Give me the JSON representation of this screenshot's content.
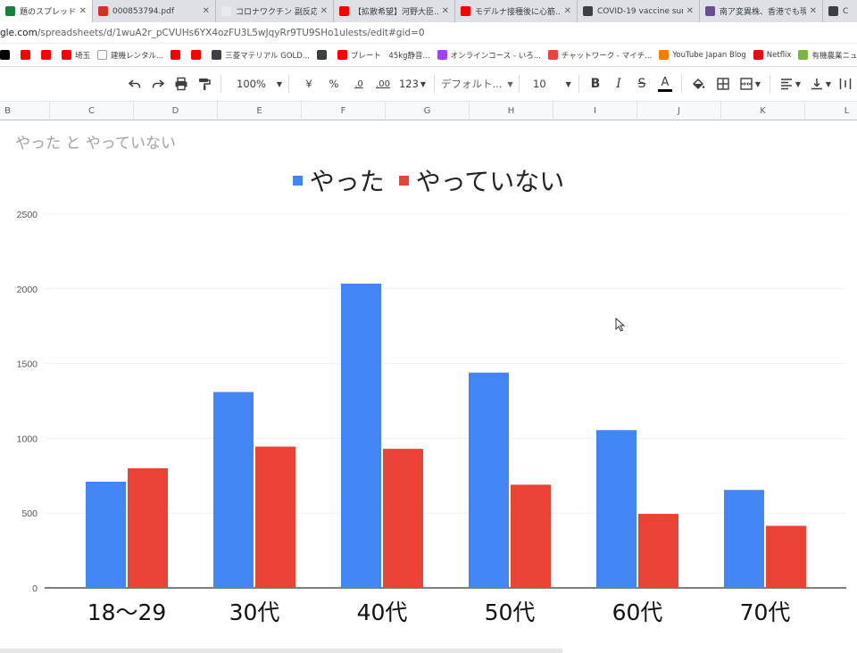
{
  "browser": {
    "tabs": [
      {
        "label": "題のスプレッドシート -",
        "color": "#188038",
        "active": true,
        "width": 104
      },
      {
        "label": "000853794.pdf",
        "color": "#d93025",
        "active": false,
        "width": 138
      },
      {
        "label": "コロナワクチン 副反応デ-",
        "color": "#e8eaed",
        "active": false,
        "width": 132
      },
      {
        "label": "【拡散希望】河野大臣...",
        "color": "#ff0000",
        "active": false,
        "width": 136
      },
      {
        "label": "モデルナ接種後に心筋...",
        "color": "#ff0000",
        "active": false,
        "width": 137
      },
      {
        "label": "COVID-19 vaccine sur",
        "color": "#3c4043",
        "active": false,
        "width": 137
      },
      {
        "label": "南ア変異株、香港でも現",
        "color": "#6a4c93",
        "active": false,
        "width": 138
      },
      {
        "label": "C",
        "color": "#3c4043",
        "active": false,
        "width": 40
      }
    ],
    "url_host": "gle.com",
    "url_path": "/spreadsheets/d/1wuA2r_pCVUHs6YX4ozFU3L5wJqyRr9TU9SHo1ulests/edit#gid=0",
    "bookmarks": [
      {
        "label": "",
        "color": "#000000"
      },
      {
        "label": "",
        "color": "#ff0000"
      },
      {
        "label": "",
        "color": "#ff0000"
      },
      {
        "label": "埼玉",
        "color": "#ff0000"
      },
      {
        "label": "建機レンタル...",
        "color": "#ffffff"
      },
      {
        "label": "",
        "color": "#ff0000"
      },
      {
        "label": "",
        "color": "#ff0000"
      },
      {
        "label": "三菱マテリアル GOLD...",
        "color": "#3c4043"
      },
      {
        "label": "",
        "color": "#3c4043"
      },
      {
        "label": "プレート　45kg静音...",
        "color": "#ff0000"
      },
      {
        "label": "オンラインコース - いろ...",
        "color": "#a142f4"
      },
      {
        "label": "チャットワーク - マイチ...",
        "color": "#e8453c"
      },
      {
        "label": "YouTube Japan Blog",
        "color": "#f57c00"
      },
      {
        "label": "Netflix",
        "color": "#e50914"
      },
      {
        "label": "有機農業ニュースクリ...",
        "color": "#7cb342"
      }
    ]
  },
  "toolbar": {
    "zoom": "100%",
    "currency": "¥",
    "percent": "%",
    "decimal_decrease": ".0",
    "decimal_increase": ".00",
    "number_format": "123",
    "font": "デフォルト...",
    "font_size": "10",
    "bold": "B",
    "italic": "I",
    "strikethrough": "S",
    "text_color": "A"
  },
  "columns": [
    "B",
    "C",
    "D",
    "E",
    "F",
    "G",
    "H",
    "I",
    "J",
    "K",
    "L"
  ],
  "chart_data": {
    "type": "bar",
    "title": "やった と やっていない",
    "categories": [
      "18〜29",
      "30代",
      "40代",
      "50代",
      "60代",
      "70代"
    ],
    "series": [
      {
        "name": "やった",
        "color": "#4285f4",
        "values": [
          710,
          1310,
          2035,
          1440,
          1055,
          655
        ]
      },
      {
        "name": "やっていない",
        "color": "#ea4335",
        "values": [
          800,
          945,
          930,
          690,
          495,
          415
        ]
      }
    ],
    "ylim": [
      0,
      2500
    ],
    "yticks": [
      "0",
      "500",
      "1000",
      "1500",
      "2000",
      "2500"
    ],
    "grid": true,
    "legend_position": "top"
  }
}
